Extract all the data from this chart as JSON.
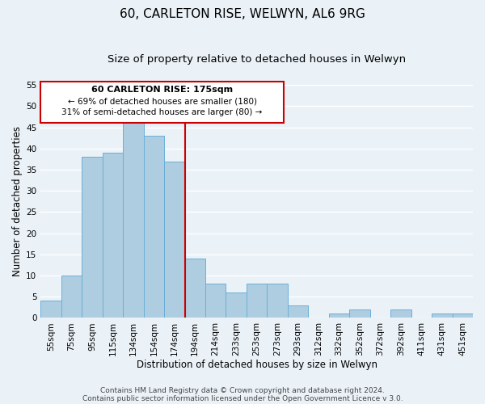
{
  "title": "60, CARLETON RISE, WELWYN, AL6 9RG",
  "subtitle": "Size of property relative to detached houses in Welwyn",
  "xlabel": "Distribution of detached houses by size in Welwyn",
  "ylabel": "Number of detached properties",
  "bar_labels": [
    "55sqm",
    "75sqm",
    "95sqm",
    "115sqm",
    "134sqm",
    "154sqm",
    "174sqm",
    "194sqm",
    "214sqm",
    "233sqm",
    "253sqm",
    "273sqm",
    "293sqm",
    "312sqm",
    "332sqm",
    "352sqm",
    "372sqm",
    "392sqm",
    "411sqm",
    "431sqm",
    "451sqm"
  ],
  "bar_values": [
    4,
    10,
    38,
    39,
    46,
    43,
    37,
    14,
    8,
    6,
    8,
    8,
    3,
    0,
    1,
    2,
    0,
    2,
    0,
    1,
    1
  ],
  "bar_color": "#aecde1",
  "bar_edge_color": "#6aafd6",
  "ylim": [
    0,
    55
  ],
  "yticks": [
    0,
    5,
    10,
    15,
    20,
    25,
    30,
    35,
    40,
    45,
    50,
    55
  ],
  "vline_color": "#cc0000",
  "vline_x_index": 6.5,
  "annotation_title": "60 CARLETON RISE: 175sqm",
  "annotation_line1": "← 69% of detached houses are smaller (180)",
  "annotation_line2": "31% of semi-detached houses are larger (80) →",
  "annotation_box_color": "#ffffff",
  "annotation_border_color": "#cc0000",
  "footer_line1": "Contains HM Land Registry data © Crown copyright and database right 2024.",
  "footer_line2": "Contains public sector information licensed under the Open Government Licence v 3.0.",
  "background_color": "#eaf2f8",
  "plot_bg_color": "#eaf2f8",
  "grid_color": "#ffffff",
  "title_fontsize": 11,
  "subtitle_fontsize": 9.5,
  "axis_label_fontsize": 8.5,
  "tick_fontsize": 7.5,
  "footer_fontsize": 6.5
}
